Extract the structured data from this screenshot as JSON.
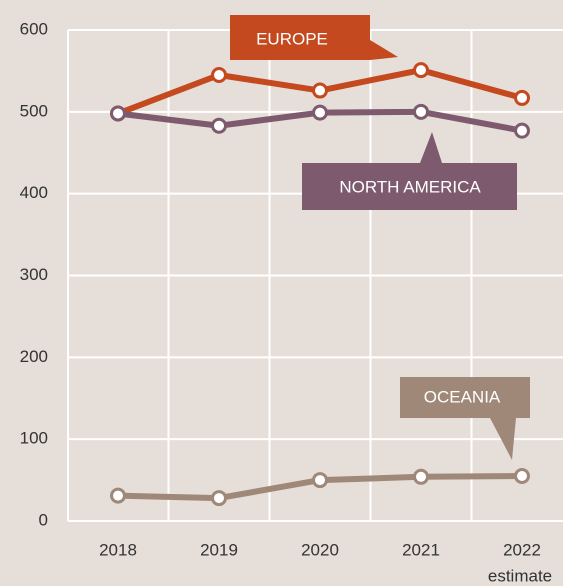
{
  "chart_data": {
    "type": "line",
    "categories": [
      "2018",
      "2019",
      "2020",
      "2021",
      "2022"
    ],
    "x_annotation": "estimate",
    "series": [
      {
        "name": "EUROPE",
        "color": "#c4491f",
        "values": [
          498,
          545,
          526,
          551,
          517
        ]
      },
      {
        "name": "NORTH AMERICA",
        "color": "#7e5a6e",
        "values": [
          498,
          483,
          499,
          500,
          477
        ]
      },
      {
        "name": "OCEANIA",
        "color": "#a08878",
        "values": [
          31,
          28,
          50,
          54,
          55
        ]
      }
    ],
    "ylim": [
      0,
      600
    ],
    "yticks": [
      0,
      100,
      200,
      300,
      400,
      500,
      600
    ],
    "grid": true
  }
}
